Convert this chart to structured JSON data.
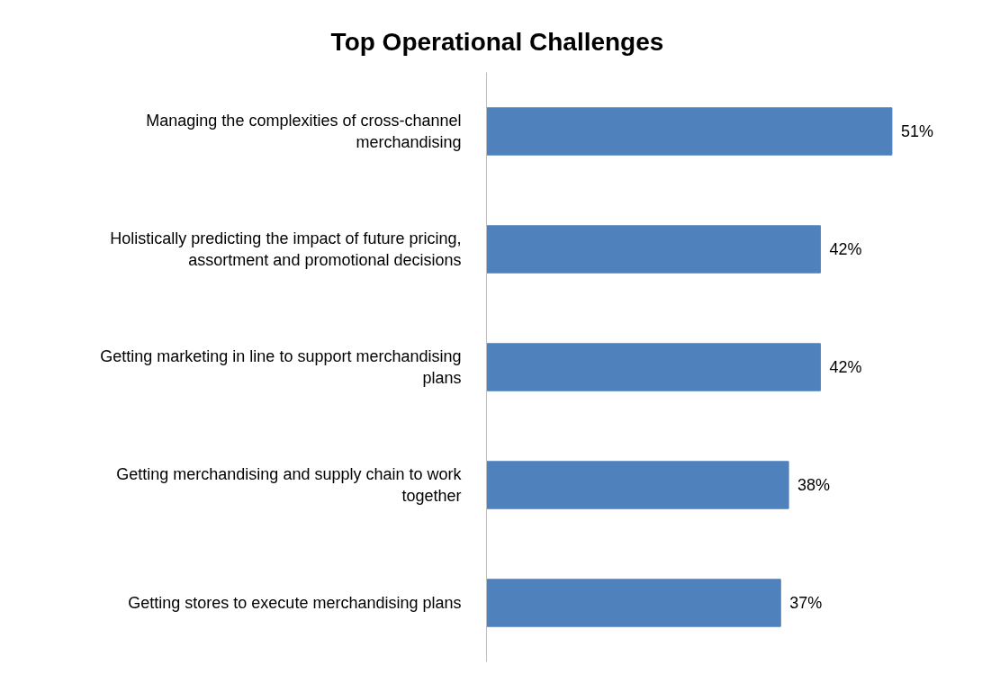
{
  "chart_data": {
    "type": "bar",
    "orientation": "horizontal",
    "title": "Top Operational Challenges",
    "categories": [
      "Managing the complexities of cross-channel merchandising",
      "Holistically predicting the impact of future pricing, assortment and promotional decisions",
      "Getting marketing in line to support merchandising plans",
      "Getting merchandising and supply chain to work together",
      "Getting stores to execute merchandising plans"
    ],
    "values": [
      51,
      42,
      42,
      38,
      37
    ],
    "value_labels": [
      "51%",
      "42%",
      "42%",
      "38%",
      "37%"
    ],
    "color": "#4f81bd",
    "grid": false,
    "tick_labels": "y"
  }
}
